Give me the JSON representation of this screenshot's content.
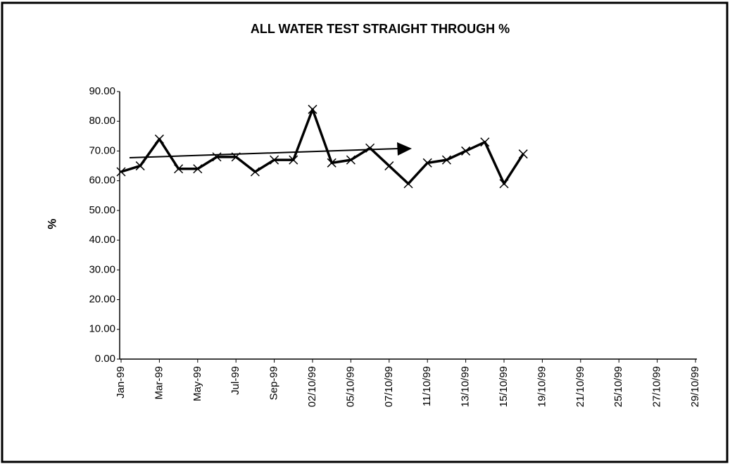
{
  "chart_data": {
    "type": "line",
    "title": "ALL WATER TEST STRAIGHT THROUGH %",
    "y_label": "%",
    "categories": [
      "Jan-99",
      null,
      "Mar-99",
      null,
      "May-99",
      null,
      "Jul-99",
      null,
      "Sep-99",
      null,
      "02/10/99",
      null,
      "05/10/99",
      null,
      "07/10/99",
      null,
      "11/10/99",
      null,
      "13/10/99",
      null,
      "15/10/99",
      null,
      "19/10/99",
      null,
      "21/10/99",
      null,
      "25/10/99",
      null,
      "27/10/99",
      null,
      "29/10/99"
    ],
    "values": [
      63,
      65,
      74,
      64,
      64,
      68,
      68,
      63,
      67,
      67,
      84,
      66,
      67,
      71,
      65,
      59,
      66,
      67,
      70,
      73,
      59,
      69,
      null,
      null,
      null,
      null,
      null,
      null,
      null,
      null,
      null
    ],
    "color": "#000000",
    "ylim": [
      0,
      90
    ],
    "yticks": [
      {
        "value": 0,
        "label": "0.00"
      },
      {
        "value": 10,
        "label": "10.00"
      },
      {
        "value": 20,
        "label": "20.00"
      },
      {
        "value": 30,
        "label": "30.00"
      },
      {
        "value": 40,
        "label": "40.00"
      },
      {
        "value": 50,
        "label": "50.00"
      },
      {
        "value": 60,
        "label": "60.00"
      },
      {
        "value": 70,
        "label": "70.00"
      },
      {
        "value": 80,
        "label": "80.00"
      },
      {
        "value": 90,
        "label": "90.00"
      }
    ],
    "grid": false
  }
}
